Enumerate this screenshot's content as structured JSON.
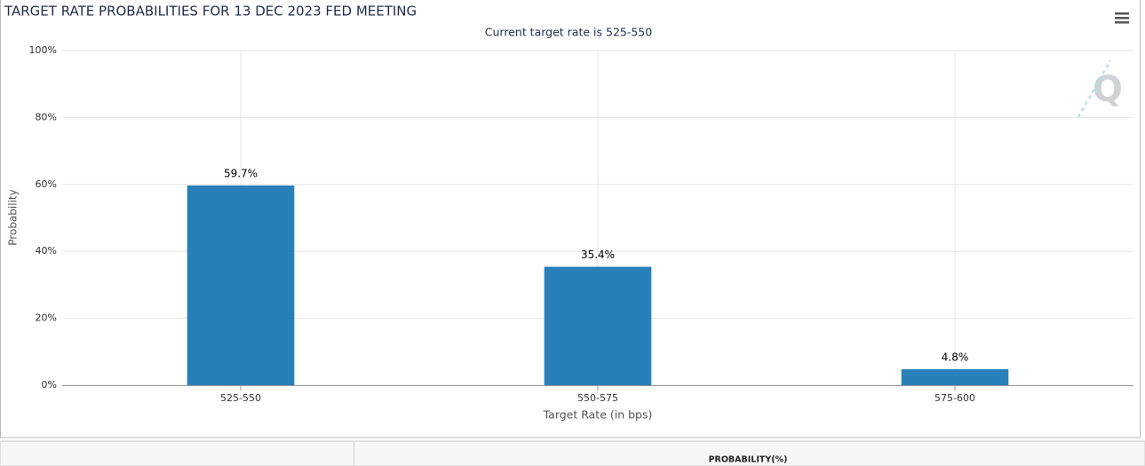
{
  "chart_data": {
    "type": "bar",
    "title": "TARGET RATE PROBABILITIES FOR 13 DEC 2023 FED MEETING",
    "subtitle": "Current target rate is 525-550",
    "x_label": "Target Rate (in bps)",
    "y_label": "Probability",
    "categories": [
      "525-550",
      "550-575",
      "575-600"
    ],
    "values": [
      59.7,
      35.4,
      4.8
    ],
    "value_labels": [
      "59.7%",
      "35.4%",
      "4.8%"
    ],
    "color": "#2980b9",
    "ylim": [
      0,
      100
    ],
    "yticks": [
      {
        "value": 0,
        "label": "0%"
      },
      {
        "value": 20,
        "label": "20%"
      },
      {
        "value": 40,
        "label": "40%"
      },
      {
        "value": 60,
        "label": "60%"
      },
      {
        "value": 80,
        "label": "80%"
      },
      {
        "value": 100,
        "label": "100%"
      }
    ],
    "grid": true
  },
  "table": {
    "header": "PROBABILITY(%)"
  }
}
